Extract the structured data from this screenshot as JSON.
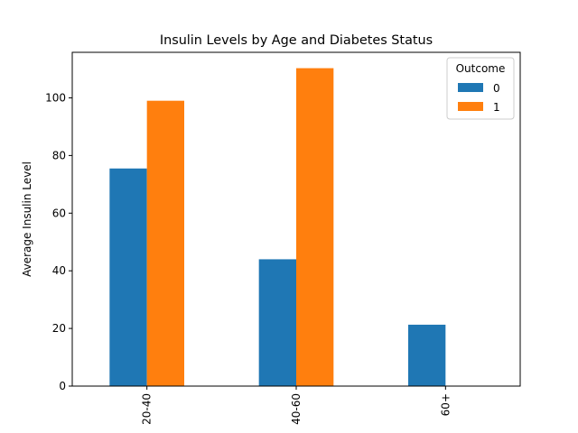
{
  "chart_data": {
    "type": "bar",
    "title": "Insulin Levels by Age and Diabetes Status",
    "xlabel": "",
    "ylabel": "Average Insulin Level",
    "categories": [
      "20-40",
      "40-60",
      "60+"
    ],
    "series": [
      {
        "name": "0",
        "values": [
          75.5,
          44.0,
          21.3
        ],
        "color": "#1f77b4"
      },
      {
        "name": "1",
        "values": [
          99.0,
          110.3,
          0
        ],
        "color": "#ff7f0e"
      }
    ],
    "ylim": [
      0,
      115.8
    ],
    "yticks": [
      0,
      20,
      40,
      60,
      80,
      100
    ],
    "legend": {
      "title": "Outcome",
      "placement": "top-right"
    },
    "grid": false
  }
}
